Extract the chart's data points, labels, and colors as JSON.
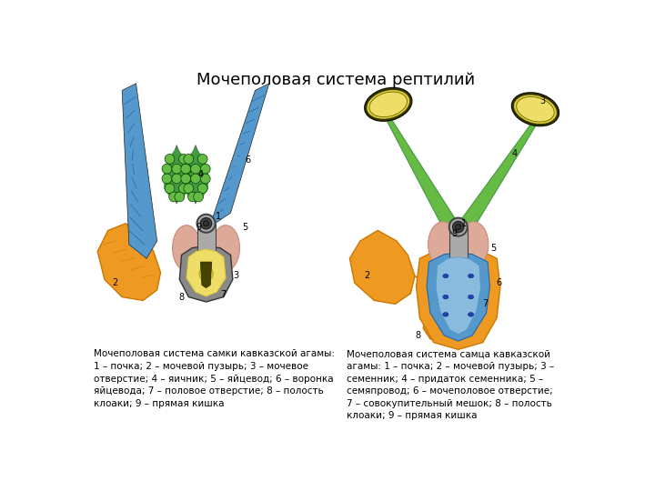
{
  "title": "Мочеполовая система рептилий",
  "title_fontsize": 13,
  "background_color": "#ffffff",
  "caption_left": "Мочеполовая система самки кавказской агамы:\n1 – почка; 2 – мочевой пузырь; 3 – мочевое\nотверстие; 4 – яичник; 5 – яйцевод; 6 – воронка\nяйцевода; 7 – половое отверстие; 8 – полость\nклоаки; 9 – прямая кишка",
  "caption_right": "Мочеполовая система самца кавказской\nагамы: 1 – почка; 2 – мочевой пузырь; 3 –\nсеменник; 4 – придаток семенника; 5 –\nсемяпровод; 6 – мочеполовое отверстие;\n7 – совокупительный мешок; 8 – полость\nклоаки; 9 – прямая кишка",
  "caption_fontsize": 7.5,
  "colors": {
    "blue": "#5599cc",
    "blue_dark": "#2266aa",
    "blue_light": "#88bbdd",
    "orange": "#cc7700",
    "orange_light": "#ee9922",
    "green": "#449944",
    "green_light": "#66bb44",
    "pink": "#cc8877",
    "pink_light": "#ddaa99",
    "yellow": "#ddcc33",
    "yellow_light": "#eedd66",
    "gray": "#888888",
    "gray_dark": "#444444",
    "gray_light": "#aaaaaa",
    "dark": "#222222",
    "black": "#111111"
  }
}
